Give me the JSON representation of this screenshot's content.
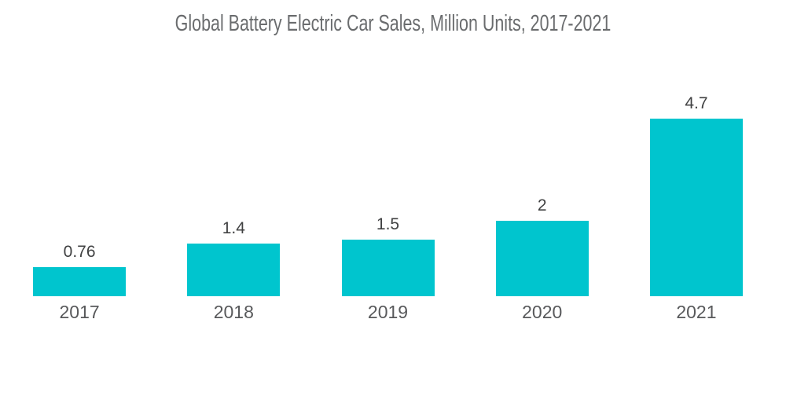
{
  "chart_data": {
    "type": "bar",
    "title": "Global Battery Electric Car Sales, Million Units, 2017-2021",
    "categories": [
      "2017",
      "2018",
      "2019",
      "2020",
      "2021"
    ],
    "values": [
      0.76,
      1.4,
      1.5,
      2,
      4.7
    ],
    "value_labels": [
      "0.76",
      "1.4",
      "1.5",
      "2",
      "4.7"
    ],
    "xlabel": "",
    "ylabel": "",
    "ylim": [
      0,
      5
    ],
    "grid": false,
    "legend_position": "none",
    "orientation": "vertical",
    "colors": {
      "bar": "#00C5CE",
      "title_text": "#6A6C6E",
      "value_label_text": "#404142",
      "axis_label_text": "#58595B",
      "background": "#FFFFFF"
    }
  }
}
